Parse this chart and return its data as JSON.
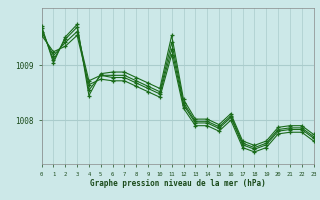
{
  "background_color": "#cce8e8",
  "grid_color": "#aacccc",
  "line_color": "#1a6b1a",
  "marker_color": "#1a6b1a",
  "xlabel": "Graphe pression niveau de la mer (hPa)",
  "xlabel_color": "#1a4a1a",
  "ylabel_ticks": [
    1008,
    1009
  ],
  "xmin": 0,
  "xmax": 23,
  "ymin": 1007.2,
  "ymax": 1010.05,
  "series": [
    [
      1009.55,
      1009.25,
      1009.35,
      1009.55,
      1008.65,
      1008.75,
      1008.72,
      1008.72,
      1008.62,
      1008.52,
      1008.42,
      1009.2,
      1008.22,
      1007.9,
      1007.9,
      1007.8,
      1008.0,
      1007.5,
      1007.42,
      1007.5,
      1007.75,
      1007.78,
      1007.78,
      1007.62
    ],
    [
      1009.62,
      1009.18,
      1009.42,
      1009.62,
      1008.72,
      1008.82,
      1008.78,
      1008.78,
      1008.68,
      1008.58,
      1008.48,
      1009.3,
      1008.28,
      1007.95,
      1007.95,
      1007.85,
      1008.05,
      1007.55,
      1007.47,
      1007.55,
      1007.8,
      1007.83,
      1007.83,
      1007.67
    ],
    [
      1009.68,
      1009.1,
      1009.48,
      1009.7,
      1008.55,
      1008.82,
      1008.82,
      1008.82,
      1008.72,
      1008.62,
      1008.52,
      1009.42,
      1008.32,
      1007.98,
      1007.98,
      1007.88,
      1008.08,
      1007.58,
      1007.5,
      1007.58,
      1007.83,
      1007.86,
      1007.86,
      1007.7
    ],
    [
      1009.72,
      1009.05,
      1009.52,
      1009.75,
      1008.45,
      1008.85,
      1008.88,
      1008.88,
      1008.78,
      1008.68,
      1008.58,
      1009.55,
      1008.38,
      1008.02,
      1008.02,
      1007.92,
      1008.12,
      1007.62,
      1007.54,
      1007.62,
      1007.87,
      1007.9,
      1007.9,
      1007.74
    ]
  ]
}
